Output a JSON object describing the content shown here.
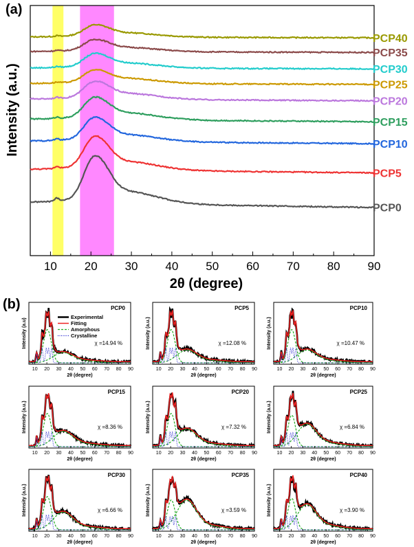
{
  "panel_a": {
    "label": "(a)",
    "chart_data": {
      "type": "line",
      "title": "",
      "xlabel": "2θ (degree)",
      "ylabel": "Intensity (a.u.)",
      "xlim": [
        5,
        90
      ],
      "xticks": [
        "10",
        "20",
        "30",
        "40",
        "50",
        "60",
        "70",
        "80",
        "90"
      ],
      "highlight_bands": [
        {
          "name": "band-yellow",
          "range": [
            10.5,
            13.2
          ],
          "color": "#ffff66"
        },
        {
          "name": "band-magenta",
          "range": [
            17.3,
            25.7
          ],
          "color": "#ff88ff"
        }
      ],
      "series": [
        {
          "name": "PCP40",
          "color": "#999900",
          "offset": 9.3,
          "peak": 0.5,
          "tail": 0.25,
          "base": 0.05
        },
        {
          "name": "PCP35",
          "color": "#8b4a4a",
          "offset": 8.5,
          "peak": 0.5,
          "tail": 0.25,
          "base": 0.05
        },
        {
          "name": "PCP30",
          "color": "#22cccc",
          "offset": 7.6,
          "peak": 0.6,
          "tail": 0.3,
          "base": 0.05
        },
        {
          "name": "PCP25",
          "color": "#cc9900",
          "offset": 6.75,
          "peak": 0.55,
          "tail": 0.3,
          "base": 0.05
        },
        {
          "name": "PCP20",
          "color": "#bb77dd",
          "offset": 5.85,
          "peak": 0.75,
          "tail": 0.35,
          "base": 0.1
        },
        {
          "name": "PCP15",
          "color": "#2e9e5e",
          "offset": 4.7,
          "peak": 0.95,
          "tail": 0.4,
          "base": 0.15
        },
        {
          "name": "PCP10",
          "color": "#2266dd",
          "offset": 3.5,
          "peak": 1.05,
          "tail": 0.4,
          "base": 0.15
        },
        {
          "name": "PCP5",
          "color": "#ee3333",
          "offset": 1.9,
          "peak": 1.5,
          "tail": 0.5,
          "base": 0.2
        },
        {
          "name": "PCP0",
          "color": "#555555",
          "offset": 0.0,
          "peak": 2.1,
          "tail": 0.7,
          "base": 0.3
        }
      ]
    }
  },
  "panel_b": {
    "label": "(b)",
    "legend": {
      "experimental": "Experimental",
      "fitting": "Fitting",
      "amorphous": "Amorphous",
      "crystalline": "Crystalline",
      "colors": {
        "experimental": "#000000",
        "fitting": "#ee2222",
        "amorphous": "#22aa22",
        "crystalline": "#2222cc"
      }
    },
    "chart_data": [
      {
        "title": "PCP0",
        "chi": "χ =14.94 %",
        "xlabel": "2θ (degree)",
        "ylabel": "Intensity (a.u)",
        "xticks": [
          "10",
          "20",
          "30",
          "40",
          "50",
          "60",
          "70",
          "80",
          "90"
        ],
        "peak": 1.0,
        "shoulder": 0.2,
        "tail": 0.25
      },
      {
        "title": "PCP5",
        "chi": "χ =12.08 %",
        "xlabel": "2θ (degree)",
        "ylabel": "Intensity (a.u.)",
        "xticks": [
          "10",
          "20",
          "30",
          "40",
          "50",
          "60",
          "70",
          "80",
          "90"
        ],
        "peak": 1.0,
        "shoulder": 0.25,
        "tail": 0.3
      },
      {
        "title": "PCP10",
        "chi": "χ =10.47 %",
        "xlabel": "2θ (degree)",
        "ylabel": "Intensity (a.u.)",
        "xticks": [
          "10",
          "20",
          "30",
          "40",
          "50",
          "60",
          "70",
          "80",
          "90"
        ],
        "peak": 1.0,
        "shoulder": 0.25,
        "tail": 0.3
      },
      {
        "title": "PCP15",
        "chi": "χ =8.36 %",
        "xlabel": "2θ (degree)",
        "ylabel": "Intensity (a.u.)",
        "xticks": [
          "10",
          "20",
          "30",
          "40",
          "50",
          "60",
          "70",
          "80",
          "90"
        ],
        "peak": 1.0,
        "shoulder": 0.3,
        "tail": 0.35
      },
      {
        "title": "PCP20",
        "chi": "χ =7.32 %",
        "xlabel": "2θ (degree)",
        "ylabel": "Intensity (a.u.)",
        "xticks": [
          "10",
          "20",
          "30",
          "40",
          "50",
          "60",
          "70",
          "80",
          "90"
        ],
        "peak": 1.0,
        "shoulder": 0.35,
        "tail": 0.35
      },
      {
        "title": "PCP25",
        "chi": "χ =6.84 %",
        "xlabel": "2θ (degree)",
        "ylabel": "Intensity (a.u.)",
        "xticks": [
          "10",
          "20",
          "30",
          "40",
          "50",
          "60",
          "70",
          "80",
          "90"
        ],
        "peak": 0.95,
        "shoulder": 0.45,
        "tail": 0.45
      },
      {
        "title": "PCP30",
        "chi": "χ =6.66 %",
        "xlabel": "2θ (degree)",
        "ylabel": "Intensity (a.u.)",
        "xticks": [
          "10",
          "20",
          "30",
          "40",
          "50",
          "60",
          "70",
          "80",
          "90"
        ],
        "peak": 1.0,
        "shoulder": 0.35,
        "tail": 0.35
      },
      {
        "title": "PCP35",
        "chi": "χ =3.59 %",
        "xlabel": "2θ (degree)",
        "ylabel": "Intensity (a.u.)",
        "xticks": [
          "10",
          "20",
          "30",
          "40",
          "50",
          "60",
          "70",
          "80",
          "90"
        ],
        "peak": 0.9,
        "shoulder": 0.6,
        "tail": 0.5
      },
      {
        "title": "PCP40",
        "chi": "χ =3.90 %",
        "xlabel": "2θ (degree)",
        "ylabel": "Intensity (a.u.)",
        "xticks": [
          "10",
          "20",
          "30",
          "40",
          "50",
          "60",
          "70",
          "80",
          "90"
        ],
        "peak": 0.95,
        "shoulder": 0.5,
        "tail": 0.5
      }
    ]
  }
}
